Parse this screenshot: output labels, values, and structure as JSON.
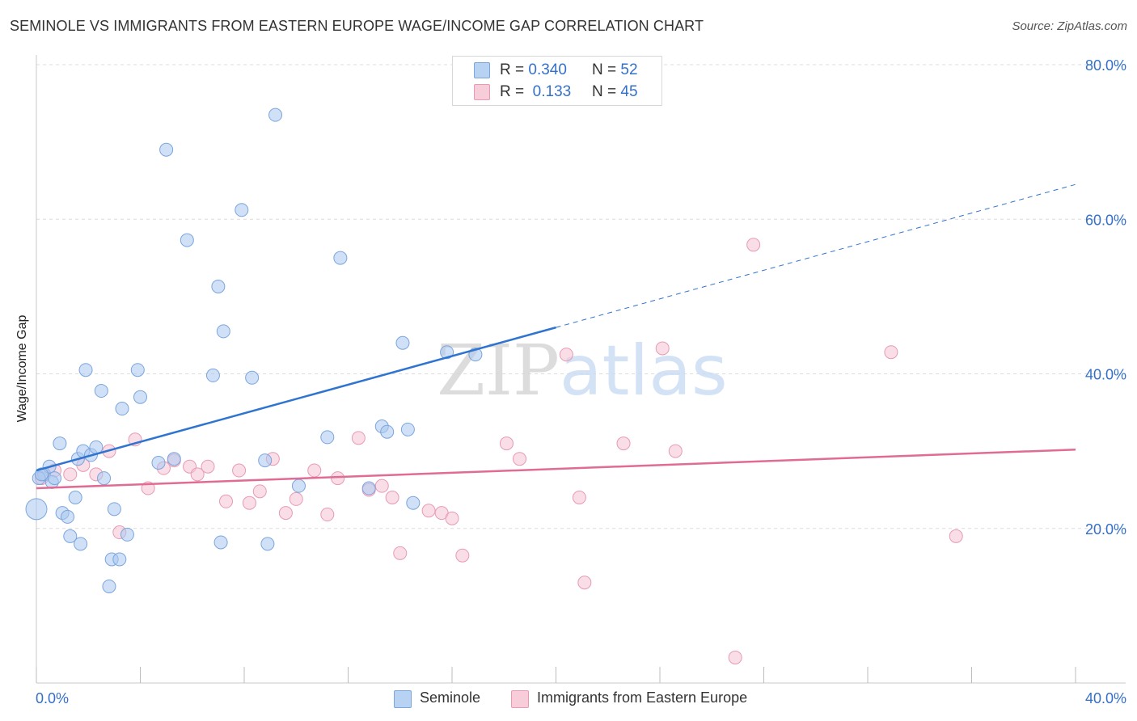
{
  "chart_data": {
    "type": "scatter",
    "title": "SEMINOLE VS IMMIGRANTS FROM EASTERN EUROPE WAGE/INCOME GAP CORRELATION CHART",
    "source": "Source: ZipAtlas.com",
    "xlabel": "",
    "ylabel": "Wage/Income Gap",
    "xlim": [
      0,
      40
    ],
    "ylim": [
      0,
      80
    ],
    "x_tick_labels": [
      "0.0%",
      "40.0%"
    ],
    "y_tick_values": [
      20,
      40,
      60,
      80
    ],
    "y_tick_labels": [
      "20.0%",
      "40.0%",
      "60.0%",
      "80.0%"
    ],
    "grid": true,
    "watermark": "ZIPatlas",
    "legend": {
      "position": "top-center",
      "entries": [
        {
          "r_label": "R =",
          "r_value": "0.340",
          "n_label": "N =",
          "n_value": "52"
        },
        {
          "r_label": "R =",
          "r_value": "0.133",
          "n_label": "N =",
          "n_value": "45"
        }
      ]
    },
    "series": [
      {
        "name": "Seminole",
        "color": "#a9c8f0",
        "stroke": "#7ba5dd",
        "trend_color": "#2f74d0",
        "trend": {
          "x0": 0,
          "y0": 27.5,
          "x1": 20,
          "y1": 46.0,
          "x_dash_end": 40,
          "y_dash_end": 64.5
        },
        "points": [
          [
            0.0,
            22.5
          ],
          [
            0.3,
            27.0
          ],
          [
            0.5,
            28.0
          ],
          [
            0.6,
            26.0
          ],
          [
            0.7,
            26.5
          ],
          [
            0.9,
            31.0
          ],
          [
            1.0,
            22.0
          ],
          [
            1.2,
            21.5
          ],
          [
            1.3,
            19.0
          ],
          [
            1.5,
            24.0
          ],
          [
            1.6,
            29.0
          ],
          [
            1.7,
            18.0
          ],
          [
            1.8,
            30.0
          ],
          [
            1.9,
            40.5
          ],
          [
            2.1,
            29.5
          ],
          [
            2.3,
            30.5
          ],
          [
            2.5,
            37.8
          ],
          [
            2.6,
            26.5
          ],
          [
            2.8,
            12.5
          ],
          [
            2.9,
            16.0
          ],
          [
            3.0,
            22.5
          ],
          [
            3.2,
            16.0
          ],
          [
            3.3,
            35.5
          ],
          [
            3.5,
            19.2
          ],
          [
            3.9,
            40.5
          ],
          [
            4.0,
            37.0
          ],
          [
            4.7,
            28.5
          ],
          [
            5.0,
            69.0
          ],
          [
            5.3,
            29.0
          ],
          [
            5.8,
            57.3
          ],
          [
            6.8,
            39.8
          ],
          [
            7.0,
            51.3
          ],
          [
            7.2,
            45.5
          ],
          [
            7.1,
            18.2
          ],
          [
            7.9,
            61.2
          ],
          [
            8.3,
            39.5
          ],
          [
            8.8,
            28.8
          ],
          [
            8.9,
            18.0
          ],
          [
            9.2,
            73.5
          ],
          [
            10.1,
            25.5
          ],
          [
            11.2,
            31.8
          ],
          [
            11.7,
            55.0
          ],
          [
            12.8,
            25.2
          ],
          [
            13.3,
            33.2
          ],
          [
            13.5,
            32.5
          ],
          [
            14.1,
            44.0
          ],
          [
            14.3,
            32.8
          ],
          [
            14.5,
            23.3
          ],
          [
            15.8,
            42.8
          ],
          [
            16.9,
            42.5
          ],
          [
            0.1,
            26.5
          ],
          [
            0.2,
            27.0
          ]
        ]
      },
      {
        "name": "Immigrants from Eastern Europe",
        "color": "#f6c3d3",
        "stroke": "#e79ab4",
        "trend_color": "#e06b94",
        "trend": {
          "x0": 0,
          "y0": 25.2,
          "x1": 40,
          "y1": 30.2
        },
        "points": [
          [
            0.2,
            26.5
          ],
          [
            0.7,
            27.5
          ],
          [
            1.3,
            27.0
          ],
          [
            1.8,
            28.2
          ],
          [
            2.3,
            27.0
          ],
          [
            2.8,
            30.0
          ],
          [
            3.2,
            19.5
          ],
          [
            3.8,
            31.5
          ],
          [
            4.3,
            25.2
          ],
          [
            4.9,
            27.8
          ],
          [
            5.3,
            28.8
          ],
          [
            5.9,
            28.0
          ],
          [
            6.2,
            27.0
          ],
          [
            6.6,
            28.0
          ],
          [
            7.3,
            23.5
          ],
          [
            7.8,
            27.5
          ],
          [
            8.2,
            23.3
          ],
          [
            8.6,
            24.8
          ],
          [
            9.1,
            29.0
          ],
          [
            9.6,
            22.0
          ],
          [
            10.0,
            23.8
          ],
          [
            10.7,
            27.5
          ],
          [
            11.2,
            21.8
          ],
          [
            11.6,
            26.5
          ],
          [
            12.4,
            31.7
          ],
          [
            12.8,
            25.0
          ],
          [
            13.3,
            25.5
          ],
          [
            13.7,
            24.0
          ],
          [
            14.0,
            16.8
          ],
          [
            15.1,
            22.3
          ],
          [
            15.6,
            22.0
          ],
          [
            16.0,
            21.3
          ],
          [
            16.4,
            16.5
          ],
          [
            18.1,
            31.0
          ],
          [
            18.6,
            29.0
          ],
          [
            20.4,
            42.5
          ],
          [
            20.9,
            24.0
          ],
          [
            21.1,
            13.0
          ],
          [
            22.6,
            31.0
          ],
          [
            24.1,
            43.3
          ],
          [
            24.6,
            30.0
          ],
          [
            27.6,
            56.7
          ],
          [
            32.9,
            42.8
          ],
          [
            35.4,
            19.0
          ],
          [
            26.9,
            3.3
          ]
        ]
      }
    ]
  }
}
